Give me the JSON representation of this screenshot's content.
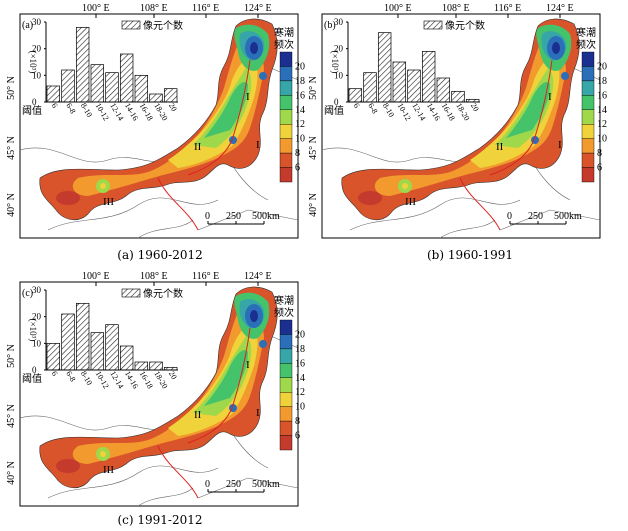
{
  "panels": [
    {
      "letter": "(a)",
      "caption": "(a) 1960-2012",
      "hist_values": [
        6,
        12,
        28,
        14,
        11,
        18,
        10,
        3,
        5
      ],
      "legend_label": "像元个数",
      "y_ticks": [
        "30",
        "20",
        "10",
        "0"
      ],
      "y_label": "(×10³)",
      "threshold_label": "阈值"
    },
    {
      "letter": "(b)",
      "caption": "(b) 1960-1991",
      "hist_values": [
        5,
        11,
        26,
        15,
        12,
        19,
        9,
        4,
        1
      ],
      "legend_label": "像元个数",
      "y_ticks": [
        "30",
        "20",
        "10",
        "0"
      ],
      "y_label": "(×10³)",
      "threshold_label": "阈值"
    },
    {
      "letter": "(c)",
      "caption": "(c) 1991-2012",
      "hist_values": [
        10,
        21,
        25,
        14,
        17,
        9,
        3,
        3,
        1
      ],
      "legend_label": "像元个数",
      "y_ticks": [
        "30",
        "20",
        "10",
        "0"
      ],
      "y_label": "(×10³)",
      "threshold_label": "阈值"
    }
  ],
  "hist_categories": [
    "6",
    "6-8",
    "8-10",
    "10-12",
    "12-14",
    "14-16",
    "16-18",
    "18-20",
    "20"
  ],
  "lon_ticks": [
    "100° E",
    "108° E",
    "116° E",
    "124° E"
  ],
  "lat_ticks": [
    "50° N",
    "45° N",
    "40° N"
  ],
  "colorbar": {
    "title_line1": "寒潮",
    "title_line2": "频次",
    "labels": [
      "20",
      "18",
      "16",
      "14",
      "12",
      "10",
      "8",
      "6"
    ],
    "colors": [
      "#1a2f8f",
      "#2a6fb8",
      "#36a6a8",
      "#45c36a",
      "#9fd84a",
      "#f0d23a",
      "#f29a2e",
      "#d9542a",
      "#c43a2d"
    ]
  },
  "region_labels": [
    "I",
    "II",
    "III",
    "I"
  ],
  "scale": {
    "zero": "0",
    "mid": "250",
    "end": "500km"
  }
}
